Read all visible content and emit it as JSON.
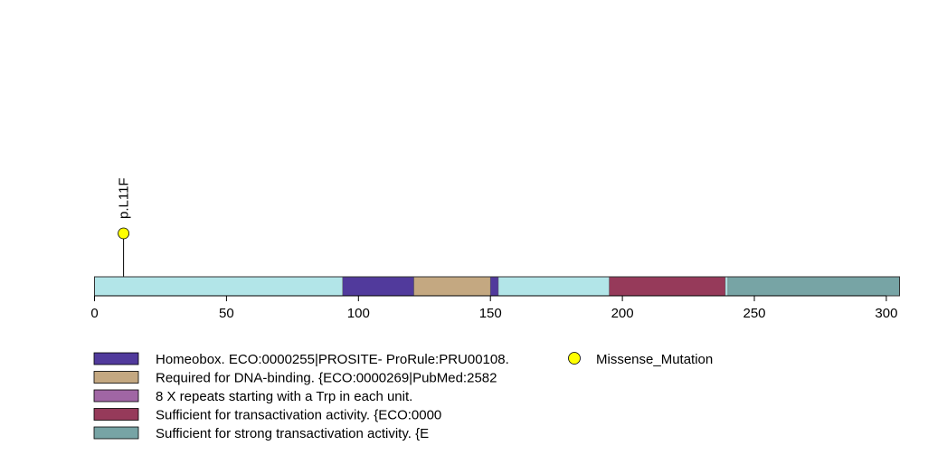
{
  "chart_data": {
    "type": "lollipop",
    "protein_length": 305,
    "xlim": [
      0,
      305
    ],
    "x_ticks": [
      0,
      50,
      100,
      150,
      200,
      250,
      300
    ],
    "backbone_color": "#b2e5e8",
    "domains": [
      {
        "start": 94,
        "end": 121,
        "color": "#513a9c"
      },
      {
        "start": 121,
        "end": 150,
        "color": "#c4a881"
      },
      {
        "start": 150,
        "end": 153,
        "color": "#513a9c"
      },
      {
        "start": 195,
        "end": 239,
        "color": "#963a5a"
      },
      {
        "start": 240,
        "end": 305,
        "color": "#77a4a5"
      }
    ],
    "mutations": [
      {
        "position": 11,
        "label": "p.L11F",
        "type": "Missense_Mutation",
        "color": "#ffff00"
      }
    ],
    "legend_domains": [
      {
        "label": "Homeobox. ECO:0000255|PROSITE- ProRule:PRU00108.",
        "color": "#513a9c"
      },
      {
        "label": "Required for DNA-binding. {ECO:0000269|PubMed:2582",
        "color": "#c4a881"
      },
      {
        "label": "8 X repeats starting with a Trp in each unit.",
        "color": "#a066a4"
      },
      {
        "label": "Sufficient for transactivation activity. {ECO:0000",
        "color": "#963a5a"
      },
      {
        "label": "Sufficient for strong transactivation activity. {E",
        "color": "#77a4a5"
      }
    ],
    "legend_mutations": [
      {
        "label": "Missense_Mutation",
        "color": "#ffff00"
      }
    ]
  }
}
